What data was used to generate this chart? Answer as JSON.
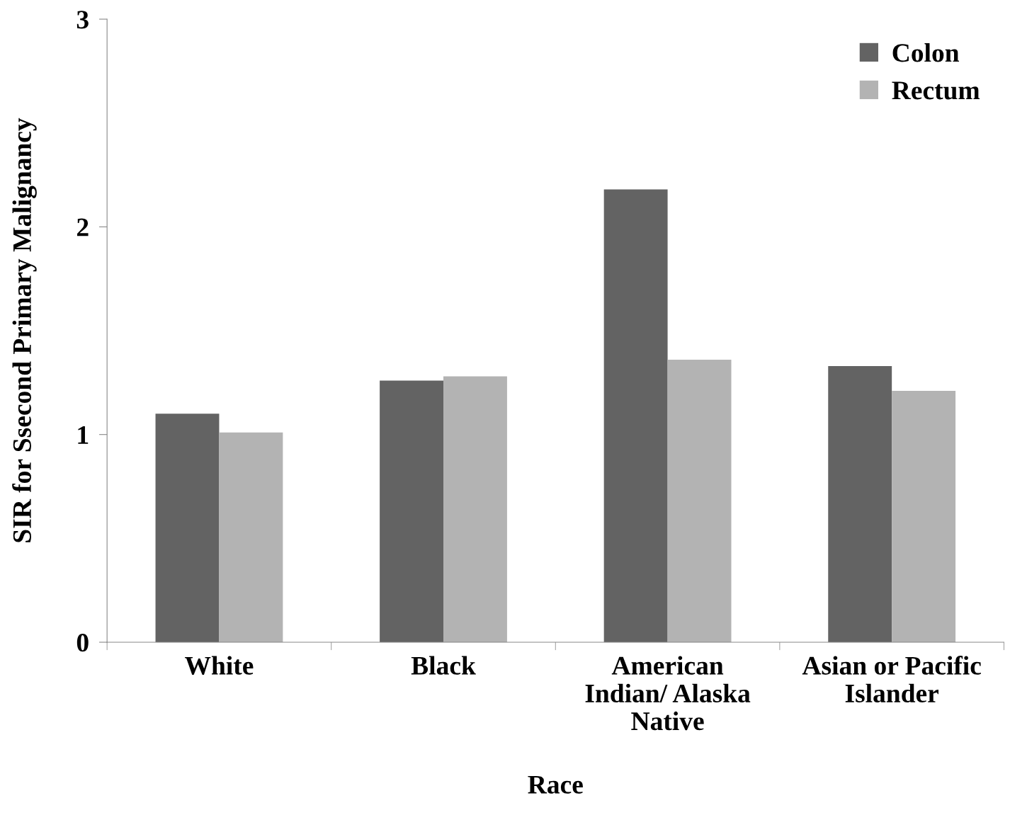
{
  "chart_data": {
    "type": "bar",
    "xlabel": "Race",
    "ylabel": "SIR for Ssecond Primary Malignancy",
    "categories": [
      "White",
      "Black",
      "American\nIndian/ Alaska\nNative",
      "Asian or Pacific\nIslander"
    ],
    "series": [
      {
        "name": "Colon",
        "color": "#636363",
        "values": [
          1.1,
          1.26,
          2.18,
          1.33
        ]
      },
      {
        "name": "Rectum",
        "color": "#b3b3b3",
        "values": [
          1.01,
          1.28,
          1.36,
          1.21
        ]
      }
    ],
    "ylim": [
      0,
      3
    ],
    "yticks": [
      0,
      1,
      2,
      3
    ],
    "grid": false,
    "legend": "top right"
  }
}
